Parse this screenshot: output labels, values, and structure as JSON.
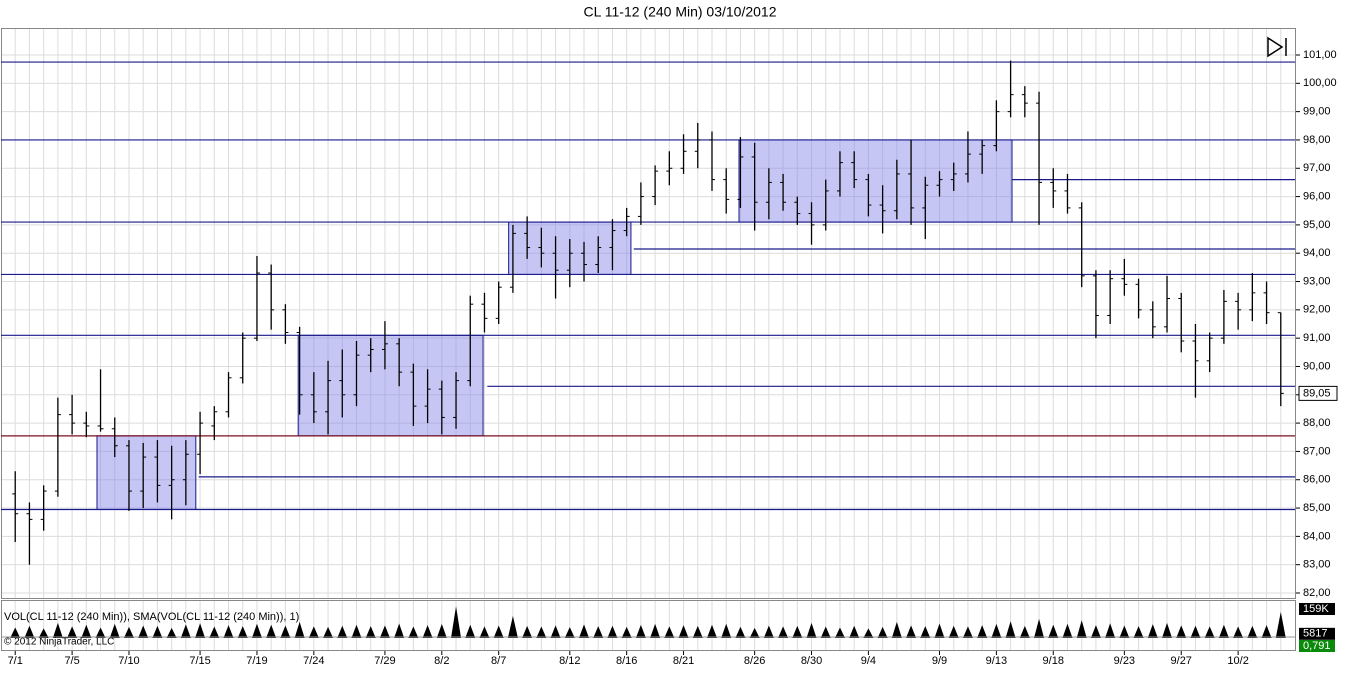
{
  "window_title": "CL 11-12 (240 Min)  03/10/2012",
  "chart_data": {
    "type": "ohlc",
    "x": [
      0,
      1,
      2,
      3,
      4,
      5,
      6,
      7,
      8,
      9,
      10,
      11,
      12,
      13,
      14,
      15,
      16,
      17,
      18,
      19,
      20,
      21,
      22,
      23,
      24,
      25,
      26,
      27,
      28,
      29,
      30,
      31,
      32,
      33,
      34,
      35,
      36,
      37,
      38,
      39,
      40,
      41,
      42,
      43,
      44,
      45,
      46,
      47,
      48,
      49,
      50,
      51,
      52,
      53,
      54,
      55,
      56,
      57,
      58,
      59,
      60,
      61,
      62,
      63,
      64,
      65,
      66,
      67,
      68,
      69,
      70,
      71,
      72,
      73,
      74,
      75,
      76,
      77,
      78,
      79,
      80,
      81,
      82,
      83,
      84,
      85,
      86,
      87,
      88,
      89
    ],
    "ohlc": [
      [
        85.5,
        86.3,
        83.8,
        84.8
      ],
      [
        84.8,
        85.2,
        83.0,
        84.6
      ],
      [
        84.6,
        85.8,
        84.2,
        85.6
      ],
      [
        85.6,
        88.9,
        85.4,
        88.3
      ],
      [
        88.3,
        89.0,
        87.6,
        88.0
      ],
      [
        88.0,
        88.4,
        87.5,
        87.9
      ],
      [
        87.9,
        89.9,
        87.7,
        87.8
      ],
      [
        87.8,
        88.2,
        86.8,
        87.2
      ],
      [
        87.2,
        87.4,
        84.9,
        85.6
      ],
      [
        85.6,
        87.3,
        85.0,
        86.8
      ],
      [
        86.8,
        87.4,
        85.2,
        85.8
      ],
      [
        85.8,
        87.2,
        84.6,
        86.0
      ],
      [
        86.0,
        87.4,
        85.1,
        86.9
      ],
      [
        86.9,
        88.4,
        86.2,
        88.0
      ],
      [
        87.9,
        88.6,
        87.4,
        88.4
      ],
      [
        88.4,
        89.8,
        88.2,
        89.6
      ],
      [
        89.6,
        91.2,
        89.4,
        91.0
      ],
      [
        91.0,
        93.9,
        90.9,
        93.3
      ],
      [
        93.3,
        93.6,
        91.3,
        92.0
      ],
      [
        92.0,
        92.2,
        90.8,
        91.2
      ],
      [
        91.2,
        91.4,
        88.3,
        89.0
      ],
      [
        89.0,
        89.8,
        88.0,
        88.4
      ],
      [
        88.4,
        90.2,
        87.6,
        89.5
      ],
      [
        89.5,
        90.6,
        88.2,
        89.0
      ],
      [
        89.0,
        90.9,
        88.6,
        90.4
      ],
      [
        90.4,
        91.0,
        89.8,
        90.6
      ],
      [
        90.6,
        91.6,
        89.9,
        90.8
      ],
      [
        90.8,
        91.0,
        89.3,
        89.8
      ],
      [
        89.8,
        90.1,
        87.9,
        88.6
      ],
      [
        88.6,
        89.9,
        88.0,
        89.2
      ],
      [
        89.2,
        89.5,
        87.6,
        88.2
      ],
      [
        88.2,
        89.8,
        87.8,
        89.5
      ],
      [
        89.5,
        92.5,
        89.3,
        92.2
      ],
      [
        92.2,
        92.6,
        91.2,
        91.7
      ],
      [
        91.7,
        93.0,
        91.5,
        92.8
      ],
      [
        92.8,
        95.0,
        92.6,
        94.7
      ],
      [
        94.7,
        95.3,
        93.8,
        94.2
      ],
      [
        94.2,
        94.9,
        93.5,
        94.0
      ],
      [
        94.0,
        94.6,
        92.4,
        93.4
      ],
      [
        93.4,
        94.5,
        92.8,
        94.0
      ],
      [
        94.0,
        94.4,
        93.0,
        93.6
      ],
      [
        93.6,
        94.6,
        93.3,
        94.2
      ],
      [
        94.2,
        95.2,
        93.4,
        94.8
      ],
      [
        94.8,
        95.6,
        94.6,
        95.3
      ],
      [
        95.3,
        96.5,
        95.0,
        96.0
      ],
      [
        96.0,
        97.1,
        95.7,
        96.9
      ],
      [
        96.9,
        97.6,
        96.4,
        97.0
      ],
      [
        97.0,
        98.2,
        96.8,
        97.6
      ],
      [
        97.6,
        98.6,
        97.0,
        98.0
      ],
      [
        98.0,
        98.3,
        96.2,
        96.6
      ],
      [
        96.6,
        97.0,
        95.4,
        95.9
      ],
      [
        95.9,
        98.1,
        95.6,
        97.4
      ],
      [
        97.4,
        97.9,
        94.8,
        95.8
      ],
      [
        95.8,
        97.0,
        95.2,
        96.5
      ],
      [
        96.5,
        96.8,
        95.5,
        95.8
      ],
      [
        95.8,
        96.0,
        95.0,
        95.4
      ],
      [
        95.4,
        95.8,
        94.3,
        95.0
      ],
      [
        95.0,
        96.6,
        94.8,
        96.2
      ],
      [
        96.2,
        97.6,
        96.0,
        97.2
      ],
      [
        97.2,
        97.6,
        96.3,
        96.6
      ],
      [
        96.6,
        96.8,
        95.3,
        95.7
      ],
      [
        95.7,
        96.4,
        94.7,
        95.5
      ],
      [
        95.5,
        97.3,
        95.2,
        96.8
      ],
      [
        96.8,
        98.0,
        95.0,
        95.6
      ],
      [
        95.6,
        96.7,
        94.5,
        96.4
      ],
      [
        96.4,
        96.9,
        96.0,
        96.6
      ],
      [
        96.6,
        97.2,
        96.2,
        96.8
      ],
      [
        96.8,
        98.3,
        96.5,
        97.5
      ],
      [
        97.5,
        98.0,
        96.8,
        97.8
      ],
      [
        97.8,
        99.4,
        97.6,
        99.0
      ],
      [
        99.0,
        100.8,
        98.8,
        99.6
      ],
      [
        99.6,
        99.9,
        98.8,
        99.3
      ],
      [
        99.3,
        99.7,
        95.0,
        96.5
      ],
      [
        96.5,
        97.0,
        95.6,
        96.2
      ],
      [
        96.2,
        96.8,
        95.4,
        95.6
      ],
      [
        95.6,
        95.8,
        92.8,
        93.2
      ],
      [
        93.2,
        93.4,
        91.0,
        91.8
      ],
      [
        91.8,
        93.4,
        91.5,
        93.1
      ],
      [
        93.1,
        93.8,
        92.5,
        92.9
      ],
      [
        92.9,
        93.1,
        91.7,
        92.0
      ],
      [
        92.0,
        92.3,
        91.0,
        91.4
      ],
      [
        91.4,
        93.2,
        91.2,
        92.4
      ],
      [
        92.4,
        92.6,
        90.5,
        90.9
      ],
      [
        90.9,
        91.5,
        88.9,
        90.2
      ],
      [
        90.2,
        91.2,
        89.8,
        91.0
      ],
      [
        91.0,
        92.7,
        90.8,
        92.3
      ],
      [
        92.3,
        92.6,
        91.3,
        92.0
      ],
      [
        92.0,
        93.3,
        91.6,
        92.6
      ],
      [
        92.6,
        93.0,
        91.5,
        91.9
      ],
      [
        91.9,
        91.9,
        88.6,
        89.05
      ]
    ],
    "volume": [
      52000,
      61000,
      48000,
      75000,
      58000,
      66000,
      52000,
      70000,
      55000,
      62000,
      60000,
      50000,
      68000,
      73000,
      57000,
      64000,
      59000,
      71000,
      66000,
      62000,
      80000,
      58000,
      55000,
      61000,
      66000,
      59000,
      63000,
      72000,
      57000,
      64000,
      70000,
      158000,
      66000,
      58000,
      62000,
      110000,
      60000,
      57000,
      63000,
      54000,
      68000,
      59000,
      61000,
      55000,
      65000,
      70000,
      58000,
      64000,
      60000,
      66000,
      71000,
      56000,
      50000,
      62000,
      58000,
      60000,
      75000,
      57000,
      52000,
      61000,
      48000,
      55000,
      80000,
      63000,
      59000,
      72000,
      61000,
      58000,
      64000,
      70000,
      83000,
      60000,
      95000,
      66000,
      71000,
      88000,
      64000,
      73000,
      62000,
      59000,
      69000,
      75000,
      63000,
      61000,
      58000,
      66000,
      57000,
      60000,
      64000,
      130000
    ],
    "xlim": [
      -1,
      90
    ],
    "xticks": [
      {
        "value": 0,
        "label": "7/1"
      },
      {
        "value": 4,
        "label": "7/5"
      },
      {
        "value": 8,
        "label": "7/10"
      },
      {
        "value": 13,
        "label": "7/15"
      },
      {
        "value": 17,
        "label": "7/19"
      },
      {
        "value": 21,
        "label": "7/24"
      },
      {
        "value": 26,
        "label": "7/29"
      },
      {
        "value": 30,
        "label": "8/2"
      },
      {
        "value": 34,
        "label": "8/7"
      },
      {
        "value": 39,
        "label": "8/12"
      },
      {
        "value": 43,
        "label": "8/16"
      },
      {
        "value": 47,
        "label": "8/21"
      },
      {
        "value": 52,
        "label": "8/26"
      },
      {
        "value": 56,
        "label": "8/30"
      },
      {
        "value": 60,
        "label": "9/4"
      },
      {
        "value": 65,
        "label": "9/9"
      },
      {
        "value": 69,
        "label": "9/13"
      },
      {
        "value": 73,
        "label": "9/18"
      },
      {
        "value": 78,
        "label": "9/23"
      },
      {
        "value": 82,
        "label": "9/27"
      },
      {
        "value": 86,
        "label": "10/2"
      }
    ],
    "ylim": [
      82,
      101
    ],
    "yticks": [
      {
        "value": 82,
        "label": "82,00"
      },
      {
        "value": 83,
        "label": "83,00"
      },
      {
        "value": 84,
        "label": "84,00"
      },
      {
        "value": 85,
        "label": "85,00"
      },
      {
        "value": 86,
        "label": "86,00"
      },
      {
        "value": 87,
        "label": "87,00"
      },
      {
        "value": 88,
        "label": "88,00"
      },
      {
        "value": 89,
        "label": "89,00"
      },
      {
        "value": 90,
        "label": "90,00"
      },
      {
        "value": 91,
        "label": "91,00"
      },
      {
        "value": 92,
        "label": "92,00"
      },
      {
        "value": 93,
        "label": "93,00"
      },
      {
        "value": 94,
        "label": "94,00"
      },
      {
        "value": 95,
        "label": "95,00"
      },
      {
        "value": 96,
        "label": "96,00"
      },
      {
        "value": 97,
        "label": "97,00"
      },
      {
        "value": 98,
        "label": "98,00"
      },
      {
        "value": 99,
        "label": "99,00"
      },
      {
        "value": 100,
        "label": "100,00"
      },
      {
        "value": 101,
        "label": "101,00"
      }
    ],
    "last_price": {
      "value": 89.05,
      "label": "89,05"
    },
    "levels": [
      {
        "price": 100.75
      },
      {
        "price": 98.0
      },
      {
        "price": 95.1
      },
      {
        "price": 93.25
      },
      {
        "price": 91.1
      },
      {
        "price": 87.55,
        "color": "#7a1020"
      },
      {
        "price": 84.95
      },
      {
        "price": 86.1,
        "start": 12.9
      },
      {
        "price": 89.3,
        "start": 33.2
      },
      {
        "price": 94.15,
        "start": 43.5
      },
      {
        "price": 96.6,
        "start": 70.1
      }
    ],
    "zones": [
      {
        "x0": 5.75,
        "x1": 12.7,
        "y0": 84.95,
        "y1": 87.55
      },
      {
        "x0": 19.9,
        "x1": 32.9,
        "y0": 87.55,
        "y1": 91.1
      },
      {
        "x0": 34.7,
        "x1": 43.3,
        "y0": 93.25,
        "y1": 95.1
      },
      {
        "x0": 50.9,
        "x1": 70.1,
        "y0": 95.1,
        "y1": 98.0
      }
    ],
    "bar_color": "#000000",
    "level_color": "#1a1a8c",
    "zone_color": "#8080e8",
    "grid": true,
    "volume_title": "VOL(CL 11-12 (240 Min)), SMA(VOL(CL 11-12 (240 Min)), 1)",
    "volume_ylim": [
      0,
      159000
    ],
    "volume_markers": [
      {
        "value": 159000,
        "label": "159K"
      },
      5817
    ],
    "indicator_value": {
      "value": 0.791,
      "label": "0,791"
    },
    "copyright": "© 2012 NinjaTrader, LLC"
  }
}
